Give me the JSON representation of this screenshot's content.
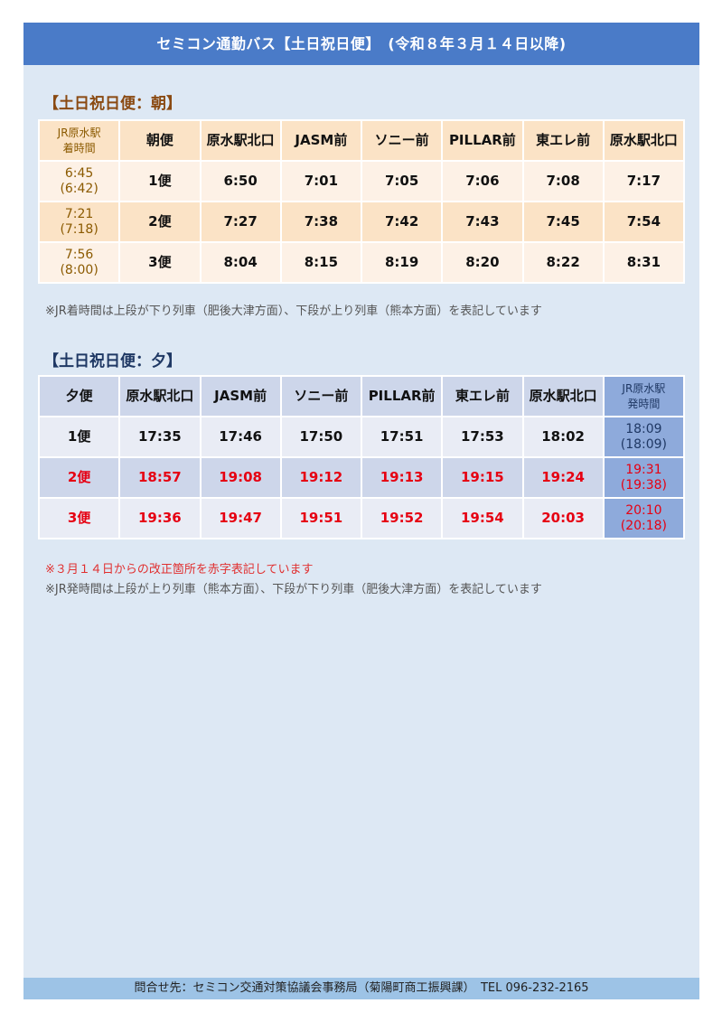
{
  "title": "セミコン通勤バス【土日祝日便】　(令和８年３月１４日以降)",
  "morning": {
    "heading": "【土日祝日便：朝】",
    "jr_header": [
      "JR原水駅",
      "着時間"
    ],
    "headers": [
      "朝便",
      "原水駅北口",
      "JASM前",
      "ソニー前",
      "PILLAR前",
      "東エレ前",
      "原水駅北口"
    ],
    "rows": [
      {
        "jr": [
          "6:45",
          "(6:42)"
        ],
        "cells": [
          "1便",
          "6:50",
          "7:01",
          "7:05",
          "7:06",
          "7:08",
          "7:17"
        ]
      },
      {
        "jr": [
          "7:21",
          "(7:18)"
        ],
        "cells": [
          "2便",
          "7:27",
          "7:38",
          "7:42",
          "7:43",
          "7:45",
          "7:54"
        ]
      },
      {
        "jr": [
          "7:56",
          "(8:00)"
        ],
        "cells": [
          "3便",
          "8:04",
          "8:15",
          "8:19",
          "8:20",
          "8:22",
          "8:31"
        ]
      }
    ],
    "note": "※JR着時間は上段が下り列車（肥後大津方面）、下段が上り列車（熊本方面）を表記しています"
  },
  "evening": {
    "heading": "【土日祝日便：夕】",
    "headers": [
      "夕便",
      "原水駅北口",
      "JASM前",
      "ソニー前",
      "PILLAR前",
      "東エレ前",
      "原水駅北口"
    ],
    "jr_header": [
      "JR原水駅",
      "発時間"
    ],
    "rows": [
      {
        "revised": false,
        "cells": [
          "1便",
          "17:35",
          "17:46",
          "17:50",
          "17:51",
          "17:53",
          "18:02"
        ],
        "jr": [
          "18:09",
          "(18:09)"
        ]
      },
      {
        "revised": true,
        "cells": [
          "2便",
          "18:57",
          "19:08",
          "19:12",
          "19:13",
          "19:15",
          "19:24"
        ],
        "jr": [
          "19:31",
          "(19:38)"
        ]
      },
      {
        "revised": true,
        "cells": [
          "3便",
          "19:36",
          "19:47",
          "19:51",
          "19:52",
          "19:54",
          "20:03"
        ],
        "jr": [
          "20:10",
          "(20:18)"
        ]
      }
    ],
    "note_red": "※３月１４日からの改正箇所を赤字表記しています",
    "note": "※JR発時間は上段が上り列車（熊本方面）、下段が下り列車（肥後大津方面）を表記しています"
  },
  "footer": "問合せ先：セミコン交通対策協議会事務局（菊陽町商工振興課）　TEL 096-232-2165",
  "colors": {
    "header": "#4a7bc8",
    "morning_jr": "#ffc000",
    "evening_jr": "#8eaadb",
    "revised": "#e60012"
  }
}
